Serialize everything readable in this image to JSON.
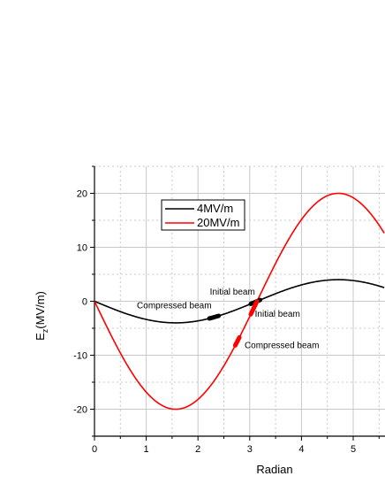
{
  "chart_data": {
    "type": "line",
    "title": "",
    "xlabel": "Radian",
    "ylabel_main": "E",
    "ylabel_sub": "z",
    "ylabel_rest": "(MV/m)",
    "xlim": [
      0,
      5.6
    ],
    "ylim": [
      -25,
      25
    ],
    "x_ticks": [
      0,
      1,
      2,
      3,
      4,
      5
    ],
    "y_ticks": [
      -20,
      -10,
      0,
      10,
      20
    ],
    "x_tick_labels": [
      "0",
      "1",
      "2",
      "3",
      "4",
      "5"
    ],
    "y_tick_labels": [
      "-20",
      "-10",
      "0",
      "10",
      "20"
    ],
    "grid": true,
    "legend_position": "top-center",
    "series": [
      {
        "name": "4MV/m",
        "color": "#000000",
        "amplitude": -4,
        "x": [
          0,
          0.5,
          1.0,
          1.5708,
          2.0,
          2.5,
          3.1416,
          3.5,
          4.0,
          4.7124,
          5.0,
          5.5,
          5.6
        ],
        "y": [
          0,
          -1.92,
          -3.37,
          -4.0,
          -3.64,
          -2.39,
          0,
          1.4,
          3.03,
          4.0,
          3.84,
          2.83,
          2.52
        ]
      },
      {
        "name": "20MV/m",
        "color": "#ff0000",
        "amplitude": -20,
        "x": [
          0,
          0.5,
          1.0,
          1.5708,
          2.0,
          2.5,
          3.1416,
          3.5,
          4.0,
          4.7124,
          5.0,
          5.5,
          5.6
        ],
        "y": [
          0,
          -9.59,
          -16.83,
          -20.0,
          -18.19,
          -11.97,
          0,
          7.02,
          15.14,
          20.0,
          19.18,
          14.11,
          12.62
        ]
      }
    ],
    "beams": [
      {
        "series": 0,
        "x_start": 2.22,
        "x_end": 2.4,
        "color": "#000000"
      },
      {
        "series": 0,
        "x_start": 3.02,
        "x_end": 3.2,
        "color": "#000000"
      },
      {
        "series": 1,
        "x_start": 2.72,
        "x_end": 2.8,
        "color": "#ff0000"
      },
      {
        "series": 1,
        "x_start": 3.02,
        "x_end": 3.14,
        "color": "#ff0000"
      }
    ],
    "annotations": [
      {
        "text": "Compressed beam",
        "x": 0.82,
        "y": -1.3
      },
      {
        "text": "Initial beam",
        "x": 2.23,
        "y": 1.2
      },
      {
        "text": "Initial beam",
        "x": 3.1,
        "y": -2.9
      },
      {
        "text": "Compressed beam",
        "x": 2.9,
        "y": -8.7
      }
    ]
  }
}
